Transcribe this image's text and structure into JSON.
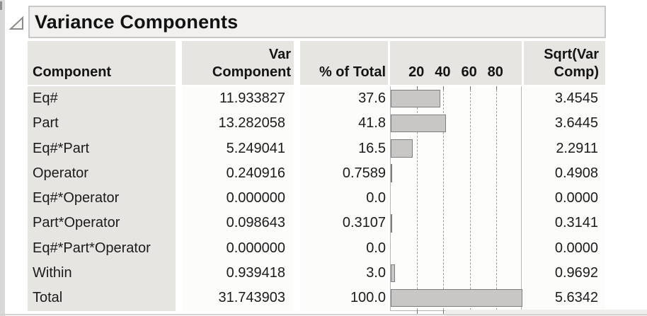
{
  "panel": {
    "title": "Variance Components",
    "disclosure_icon": "open-outline-triangle"
  },
  "header": {
    "component": "Component",
    "var_component_line1": "Var",
    "var_component_line2": "Component",
    "pct_of_total": "% of Total",
    "sqrt_line1": "Sqrt(Var",
    "sqrt_line2": "Comp)"
  },
  "chart_data": {
    "type": "bar",
    "orientation": "horizontal",
    "title": "",
    "xlabel": "% of Total",
    "axis_range": [
      0,
      100
    ],
    "axis_ticks": [
      20,
      40,
      60,
      80
    ],
    "grid": "dashed-vertical",
    "categories": [
      "Eq#",
      "Part",
      "Eq#*Part",
      "Operator",
      "Eq#*Operator",
      "Part*Operator",
      "Eq#*Part*Operator",
      "Within",
      "Total"
    ],
    "values": [
      37.6,
      41.8,
      16.5,
      0.7589,
      0.0,
      0.3107,
      0.0,
      3.0,
      100.0
    ],
    "bar_fill": "#c8c7c5",
    "bar_border": "#7e7e7e"
  },
  "table": {
    "rows": [
      {
        "component": "Eq#",
        "var_component": "11.933827",
        "pct_of_total": "37.6",
        "pct_value": 37.6,
        "sqrt_var_comp": "3.4545"
      },
      {
        "component": "Part",
        "var_component": "13.282058",
        "pct_of_total": "41.8",
        "pct_value": 41.8,
        "sqrt_var_comp": "3.6445"
      },
      {
        "component": "Eq#*Part",
        "var_component": "5.249041",
        "pct_of_total": "16.5",
        "pct_value": 16.5,
        "sqrt_var_comp": "2.2911"
      },
      {
        "component": "Operator",
        "var_component": "0.240916",
        "pct_of_total": "0.7589",
        "pct_value": 0.7589,
        "sqrt_var_comp": "0.4908"
      },
      {
        "component": "Eq#*Operator",
        "var_component": "0.000000",
        "pct_of_total": "0.0",
        "pct_value": 0.0,
        "sqrt_var_comp": "0.0000"
      },
      {
        "component": "Part*Operator",
        "var_component": "0.098643",
        "pct_of_total": "0.3107",
        "pct_value": 0.3107,
        "sqrt_var_comp": "0.3141"
      },
      {
        "component": "Eq#*Part*Operator",
        "var_component": "0.000000",
        "pct_of_total": "0.0",
        "pct_value": 0.0,
        "sqrt_var_comp": "0.0000"
      },
      {
        "component": "Within",
        "var_component": "0.939418",
        "pct_of_total": "3.0",
        "pct_value": 3.0,
        "sqrt_var_comp": "0.9692"
      },
      {
        "component": "Total",
        "var_component": "31.743903",
        "pct_of_total": "100.0",
        "pct_value": 100.0,
        "sqrt_var_comp": "5.6342"
      }
    ]
  },
  "colors": {
    "header_bg": "#e7e5e2",
    "body_bg": "#fcfcfb",
    "title_box_bg": "#f1f0ee",
    "title_box_border": "#c9c8c6",
    "bar_fill": "#c8c7c5",
    "bar_border": "#7e7e7e",
    "gridline": "#9d9d9d",
    "chart_frame": "#b6b5b3",
    "text": "#1b1b1b"
  }
}
